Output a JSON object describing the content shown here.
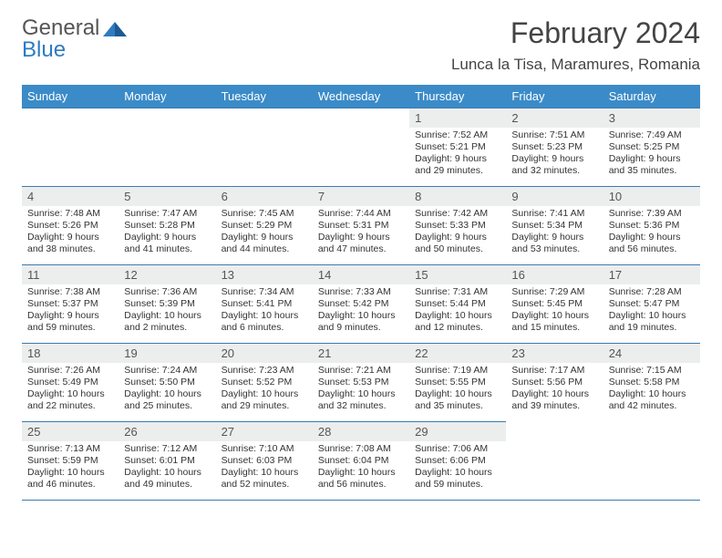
{
  "logo": {
    "word1": "General",
    "word2": "Blue",
    "icon_color": "#2f7bbf",
    "word1_color": "#555555",
    "word2_color": "#2f7bbf"
  },
  "title": "February 2024",
  "location": "Lunca la Tisa, Maramures, Romania",
  "header_bg": "#3b8bc8",
  "border_color": "#3b7bb0",
  "daynum_bg": "#eceded",
  "day_names": [
    "Sunday",
    "Monday",
    "Tuesday",
    "Wednesday",
    "Thursday",
    "Friday",
    "Saturday"
  ],
  "leading_blanks": 4,
  "days": [
    {
      "n": "1",
      "sunrise": "Sunrise: 7:52 AM",
      "sunset": "Sunset: 5:21 PM",
      "d1": "Daylight: 9 hours",
      "d2": "and 29 minutes."
    },
    {
      "n": "2",
      "sunrise": "Sunrise: 7:51 AM",
      "sunset": "Sunset: 5:23 PM",
      "d1": "Daylight: 9 hours",
      "d2": "and 32 minutes."
    },
    {
      "n": "3",
      "sunrise": "Sunrise: 7:49 AM",
      "sunset": "Sunset: 5:25 PM",
      "d1": "Daylight: 9 hours",
      "d2": "and 35 minutes."
    },
    {
      "n": "4",
      "sunrise": "Sunrise: 7:48 AM",
      "sunset": "Sunset: 5:26 PM",
      "d1": "Daylight: 9 hours",
      "d2": "and 38 minutes."
    },
    {
      "n": "5",
      "sunrise": "Sunrise: 7:47 AM",
      "sunset": "Sunset: 5:28 PM",
      "d1": "Daylight: 9 hours",
      "d2": "and 41 minutes."
    },
    {
      "n": "6",
      "sunrise": "Sunrise: 7:45 AM",
      "sunset": "Sunset: 5:29 PM",
      "d1": "Daylight: 9 hours",
      "d2": "and 44 minutes."
    },
    {
      "n": "7",
      "sunrise": "Sunrise: 7:44 AM",
      "sunset": "Sunset: 5:31 PM",
      "d1": "Daylight: 9 hours",
      "d2": "and 47 minutes."
    },
    {
      "n": "8",
      "sunrise": "Sunrise: 7:42 AM",
      "sunset": "Sunset: 5:33 PM",
      "d1": "Daylight: 9 hours",
      "d2": "and 50 minutes."
    },
    {
      "n": "9",
      "sunrise": "Sunrise: 7:41 AM",
      "sunset": "Sunset: 5:34 PM",
      "d1": "Daylight: 9 hours",
      "d2": "and 53 minutes."
    },
    {
      "n": "10",
      "sunrise": "Sunrise: 7:39 AM",
      "sunset": "Sunset: 5:36 PM",
      "d1": "Daylight: 9 hours",
      "d2": "and 56 minutes."
    },
    {
      "n": "11",
      "sunrise": "Sunrise: 7:38 AM",
      "sunset": "Sunset: 5:37 PM",
      "d1": "Daylight: 9 hours",
      "d2": "and 59 minutes."
    },
    {
      "n": "12",
      "sunrise": "Sunrise: 7:36 AM",
      "sunset": "Sunset: 5:39 PM",
      "d1": "Daylight: 10 hours",
      "d2": "and 2 minutes."
    },
    {
      "n": "13",
      "sunrise": "Sunrise: 7:34 AM",
      "sunset": "Sunset: 5:41 PM",
      "d1": "Daylight: 10 hours",
      "d2": "and 6 minutes."
    },
    {
      "n": "14",
      "sunrise": "Sunrise: 7:33 AM",
      "sunset": "Sunset: 5:42 PM",
      "d1": "Daylight: 10 hours",
      "d2": "and 9 minutes."
    },
    {
      "n": "15",
      "sunrise": "Sunrise: 7:31 AM",
      "sunset": "Sunset: 5:44 PM",
      "d1": "Daylight: 10 hours",
      "d2": "and 12 minutes."
    },
    {
      "n": "16",
      "sunrise": "Sunrise: 7:29 AM",
      "sunset": "Sunset: 5:45 PM",
      "d1": "Daylight: 10 hours",
      "d2": "and 15 minutes."
    },
    {
      "n": "17",
      "sunrise": "Sunrise: 7:28 AM",
      "sunset": "Sunset: 5:47 PM",
      "d1": "Daylight: 10 hours",
      "d2": "and 19 minutes."
    },
    {
      "n": "18",
      "sunrise": "Sunrise: 7:26 AM",
      "sunset": "Sunset: 5:49 PM",
      "d1": "Daylight: 10 hours",
      "d2": "and 22 minutes."
    },
    {
      "n": "19",
      "sunrise": "Sunrise: 7:24 AM",
      "sunset": "Sunset: 5:50 PM",
      "d1": "Daylight: 10 hours",
      "d2": "and 25 minutes."
    },
    {
      "n": "20",
      "sunrise": "Sunrise: 7:23 AM",
      "sunset": "Sunset: 5:52 PM",
      "d1": "Daylight: 10 hours",
      "d2": "and 29 minutes."
    },
    {
      "n": "21",
      "sunrise": "Sunrise: 7:21 AM",
      "sunset": "Sunset: 5:53 PM",
      "d1": "Daylight: 10 hours",
      "d2": "and 32 minutes."
    },
    {
      "n": "22",
      "sunrise": "Sunrise: 7:19 AM",
      "sunset": "Sunset: 5:55 PM",
      "d1": "Daylight: 10 hours",
      "d2": "and 35 minutes."
    },
    {
      "n": "23",
      "sunrise": "Sunrise: 7:17 AM",
      "sunset": "Sunset: 5:56 PM",
      "d1": "Daylight: 10 hours",
      "d2": "and 39 minutes."
    },
    {
      "n": "24",
      "sunrise": "Sunrise: 7:15 AM",
      "sunset": "Sunset: 5:58 PM",
      "d1": "Daylight: 10 hours",
      "d2": "and 42 minutes."
    },
    {
      "n": "25",
      "sunrise": "Sunrise: 7:13 AM",
      "sunset": "Sunset: 5:59 PM",
      "d1": "Daylight: 10 hours",
      "d2": "and 46 minutes."
    },
    {
      "n": "26",
      "sunrise": "Sunrise: 7:12 AM",
      "sunset": "Sunset: 6:01 PM",
      "d1": "Daylight: 10 hours",
      "d2": "and 49 minutes."
    },
    {
      "n": "27",
      "sunrise": "Sunrise: 7:10 AM",
      "sunset": "Sunset: 6:03 PM",
      "d1": "Daylight: 10 hours",
      "d2": "and 52 minutes."
    },
    {
      "n": "28",
      "sunrise": "Sunrise: 7:08 AM",
      "sunset": "Sunset: 6:04 PM",
      "d1": "Daylight: 10 hours",
      "d2": "and 56 minutes."
    },
    {
      "n": "29",
      "sunrise": "Sunrise: 7:06 AM",
      "sunset": "Sunset: 6:06 PM",
      "d1": "Daylight: 10 hours",
      "d2": "and 59 minutes."
    }
  ]
}
